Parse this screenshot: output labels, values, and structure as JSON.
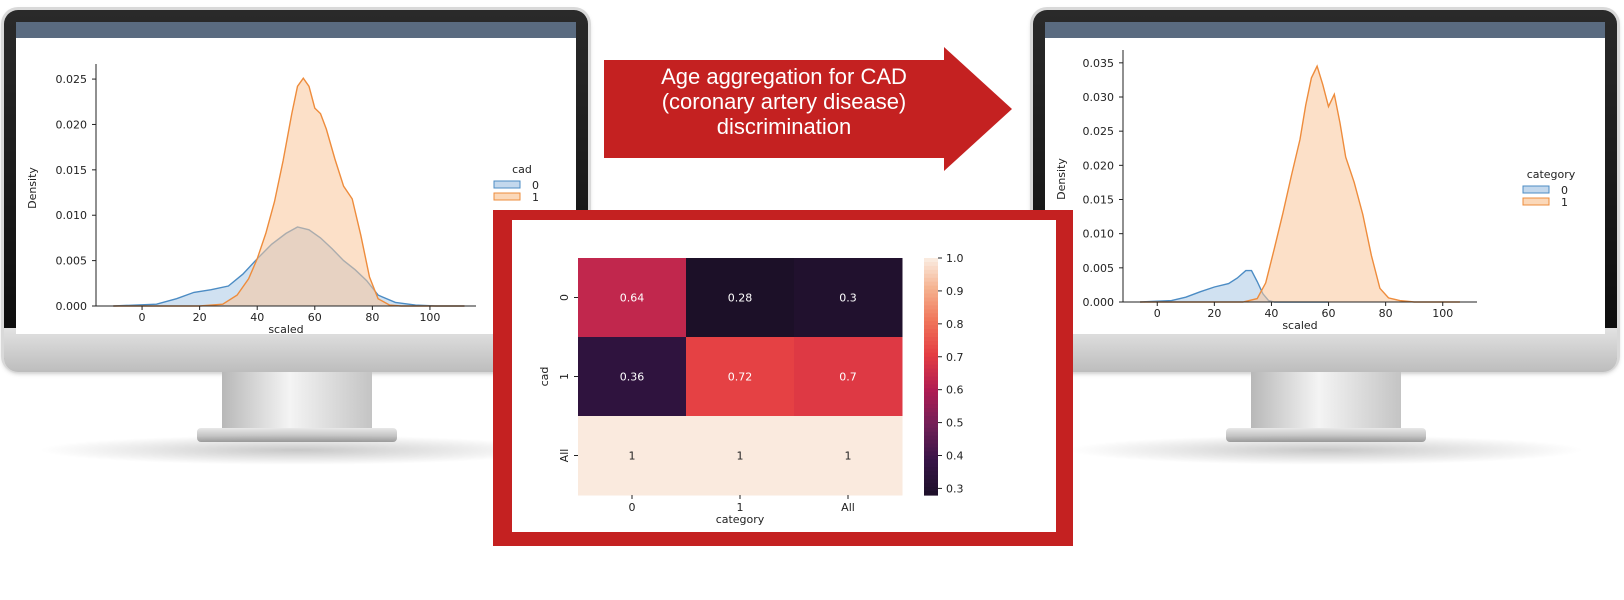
{
  "banner": {
    "lines": [
      "Age aggregation for CAD",
      "(coronary artery disease)",
      "discrimination"
    ]
  },
  "colors": {
    "series0": "#4c8cc4",
    "series0_fill": "#a9c8e6",
    "series1": "#ee8c3c",
    "series1_fill": "#f9c79b",
    "banner": "#c42121"
  },
  "chart_data": [
    {
      "type": "area",
      "subtype": "kde",
      "xlabel": "scaled",
      "ylabel": "Density",
      "xlim": [
        -16,
        116
      ],
      "ylim": [
        0,
        0.026
      ],
      "xticks": [
        0,
        20,
        40,
        60,
        80,
        100
      ],
      "yticks": [
        0.0,
        0.005,
        0.01,
        0.015,
        0.02,
        0.025
      ],
      "ytick_labels": [
        "0.000",
        "0.005",
        "0.010",
        "0.015",
        "0.020",
        "0.025"
      ],
      "legend": {
        "title": "cad",
        "position": "right",
        "entries": [
          "0",
          "1"
        ]
      },
      "series": [
        {
          "name": "0",
          "x": [
            -10,
            5,
            12,
            18,
            24,
            30,
            35,
            40,
            45,
            50,
            54,
            58,
            62,
            66,
            70,
            74,
            78,
            82,
            88,
            95,
            102,
            112
          ],
          "y": [
            0,
            0.0002,
            0.0008,
            0.0015,
            0.0018,
            0.0022,
            0.0035,
            0.0052,
            0.0068,
            0.008,
            0.0087,
            0.0084,
            0.0075,
            0.0063,
            0.005,
            0.004,
            0.0028,
            0.0012,
            0.0004,
            0.0001,
            0,
            0
          ]
        },
        {
          "name": "1",
          "x": [
            -10,
            20,
            28,
            33,
            37,
            40,
            43,
            46,
            49,
            52,
            54,
            56,
            58,
            60,
            62,
            64,
            67,
            70,
            73,
            76,
            79,
            82,
            86,
            90,
            95,
            102,
            112
          ],
          "y": [
            0,
            0,
            0.0002,
            0.0012,
            0.003,
            0.0052,
            0.008,
            0.0115,
            0.016,
            0.0212,
            0.0242,
            0.0251,
            0.0242,
            0.0218,
            0.0212,
            0.0195,
            0.0162,
            0.0132,
            0.0118,
            0.0078,
            0.0032,
            0.0008,
            0.0001,
            0,
            0,
            0,
            0
          ]
        }
      ]
    },
    {
      "type": "heatmap",
      "xlabel": "category",
      "ylabel": "cad",
      "columns": [
        "0",
        "1",
        "All"
      ],
      "rows": [
        "0",
        "1",
        "All"
      ],
      "values": [
        [
          0.64,
          0.28,
          0.3
        ],
        [
          0.36,
          0.72,
          0.7
        ],
        [
          1,
          1,
          1
        ]
      ],
      "colorbar": {
        "min": 0.28,
        "max": 1.0,
        "ticks": [
          0.3,
          0.4,
          0.5,
          0.6,
          0.7,
          0.8,
          0.9,
          1.0
        ],
        "tick_labels": [
          "0.3",
          "0.4",
          "0.5",
          "0.6",
          "0.7",
          "0.8",
          "0.9",
          "1.0"
        ]
      }
    },
    {
      "type": "area",
      "subtype": "kde",
      "xlabel": "scaled",
      "ylabel": "Density",
      "xlim": [
        -12,
        112
      ],
      "ylim": [
        0,
        0.036
      ],
      "xticks": [
        0,
        20,
        40,
        60,
        80,
        100
      ],
      "yticks": [
        0.0,
        0.005,
        0.01,
        0.015,
        0.02,
        0.025,
        0.03,
        0.035
      ],
      "ytick_labels": [
        "0.000",
        "0.005",
        "0.010",
        "0.015",
        "0.020",
        "0.025",
        "0.030",
        "0.035"
      ],
      "legend": {
        "title": "category",
        "position": "right",
        "entries": [
          "0",
          "1"
        ]
      },
      "series": [
        {
          "name": "0",
          "x": [
            -6,
            5,
            10,
            15,
            20,
            25,
            28,
            31,
            33,
            35,
            37,
            39,
            41,
            50,
            60
          ],
          "y": [
            0,
            0.0002,
            0.0007,
            0.0015,
            0.0022,
            0.0027,
            0.0035,
            0.0046,
            0.0046,
            0.003,
            0.0012,
            0.0002,
            0,
            0,
            0
          ]
        },
        {
          "name": "1",
          "x": [
            -6,
            30,
            35,
            38,
            41,
            44,
            47,
            50,
            52,
            54,
            56,
            58,
            60,
            62,
            64,
            66,
            69,
            72,
            75,
            78,
            81,
            85,
            90,
            100,
            106
          ],
          "y": [
            0,
            0,
            0.0005,
            0.0028,
            0.0078,
            0.013,
            0.0185,
            0.0238,
            0.0288,
            0.0328,
            0.0345,
            0.0318,
            0.0286,
            0.0304,
            0.0262,
            0.0212,
            0.0175,
            0.0128,
            0.0068,
            0.002,
            0.0006,
            0.0002,
            0,
            0,
            0
          ]
        }
      ]
    }
  ]
}
